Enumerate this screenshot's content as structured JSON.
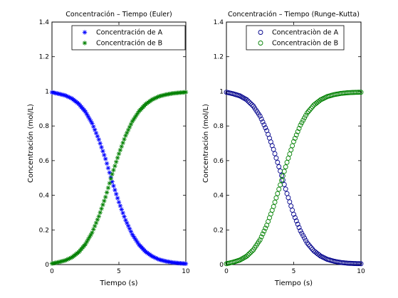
{
  "chart_data": [
    {
      "type": "line",
      "marker": "asterisk",
      "title": "Concentración – Tiempo (Euler)",
      "xlabel": "Tiempo (s)",
      "ylabel": "Concentración (mol/L)",
      "xlim": [
        0,
        10
      ],
      "ylim": [
        0,
        1.4
      ],
      "xticks": [
        0,
        5,
        10
      ],
      "yticks": [
        0,
        0.2,
        0.4,
        0.6,
        0.8,
        1,
        1.2,
        1.4
      ],
      "xtick_labels": [
        "0",
        "5",
        "10"
      ],
      "ytick_labels": [
        "0",
        "0.2",
        "0.4",
        "0.6",
        "0.8",
        "1",
        "1.2",
        "1.4"
      ],
      "grid": false,
      "legend_position": "top-right",
      "series": [
        {
          "name": "Concentración de A",
          "color": "#0000ff",
          "x": [
            0,
            0.5,
            1,
            1.5,
            2,
            2.5,
            3,
            3.5,
            4,
            4.5,
            5,
            5.5,
            6,
            6.5,
            7,
            7.5,
            8,
            8.5,
            9,
            9.5,
            10
          ],
          "y": [
            0.994,
            0.986,
            0.976,
            0.958,
            0.928,
            0.882,
            0.815,
            0.722,
            0.61,
            0.478,
            0.36,
            0.256,
            0.174,
            0.115,
            0.074,
            0.047,
            0.029,
            0.019,
            0.012,
            0.008,
            0.005
          ]
        },
        {
          "name": "Concentración de B",
          "color": "#008000",
          "x": [
            0,
            0.5,
            1,
            1.5,
            2,
            2.5,
            3,
            3.5,
            4,
            4.5,
            5,
            5.5,
            6,
            6.5,
            7,
            7.5,
            8,
            8.5,
            9,
            9.5,
            10
          ],
          "y": [
            0.006,
            0.014,
            0.024,
            0.042,
            0.072,
            0.118,
            0.185,
            0.278,
            0.39,
            0.522,
            0.64,
            0.744,
            0.826,
            0.885,
            0.926,
            0.953,
            0.971,
            0.981,
            0.988,
            0.992,
            0.995
          ]
        }
      ]
    },
    {
      "type": "line",
      "marker": "circle",
      "title": "Concentración – Tiempo (Runge–Kutta)",
      "xlabel": "Tiempo (s)",
      "ylabel": "Concentración (mol/L)",
      "xlim": [
        0,
        10
      ],
      "ylim": [
        0,
        1.4
      ],
      "xticks": [
        0,
        5,
        10
      ],
      "yticks": [
        0,
        0.2,
        0.4,
        0.6,
        0.8,
        1,
        1.2,
        1.4
      ],
      "xtick_labels": [
        "0",
        "5",
        "10"
      ],
      "ytick_labels": [
        "0",
        "0.2",
        "0.4",
        "0.6",
        "0.8",
        "1",
        "1.2",
        "1.4"
      ],
      "grid": false,
      "legend_position": "top-right",
      "series": [
        {
          "name": "Concentraciòn de A",
          "color": "#00008b",
          "x": [
            0,
            0.5,
            1,
            1.5,
            2,
            2.5,
            3,
            3.5,
            4,
            4.5,
            5,
            5.5,
            6,
            6.5,
            7,
            7.5,
            8,
            8.5,
            9,
            9.5,
            10
          ],
          "y": [
            0.995,
            0.986,
            0.974,
            0.952,
            0.915,
            0.857,
            0.773,
            0.665,
            0.54,
            0.41,
            0.29,
            0.195,
            0.125,
            0.079,
            0.049,
            0.03,
            0.019,
            0.012,
            0.008,
            0.006,
            0.005
          ]
        },
        {
          "name": "Concentraciòn de B",
          "color": "#008000",
          "x": [
            0,
            0.5,
            1,
            1.5,
            2,
            2.5,
            3,
            3.5,
            4,
            4.5,
            5,
            5.5,
            6,
            6.5,
            7,
            7.5,
            8,
            8.5,
            9,
            9.5,
            10
          ],
          "y": [
            0.005,
            0.014,
            0.026,
            0.048,
            0.085,
            0.143,
            0.227,
            0.335,
            0.46,
            0.59,
            0.71,
            0.805,
            0.875,
            0.921,
            0.951,
            0.97,
            0.981,
            0.988,
            0.992,
            0.994,
            0.995
          ]
        }
      ]
    }
  ]
}
